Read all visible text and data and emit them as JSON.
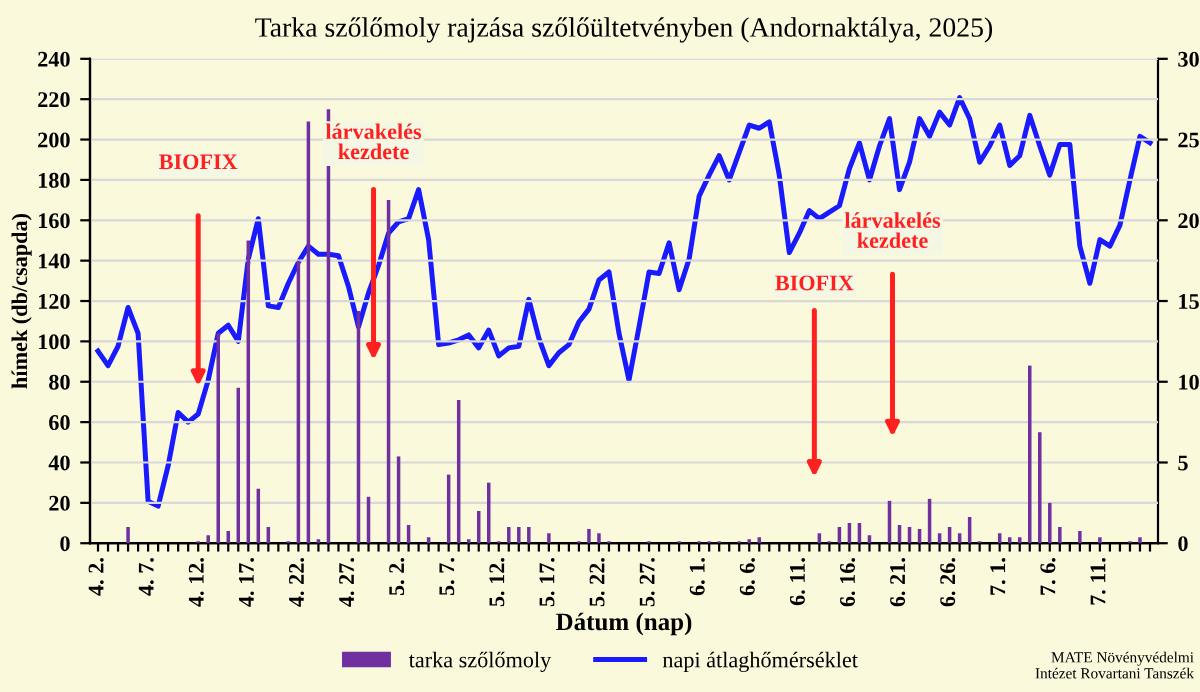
{
  "chart_data": {
    "type": "bar",
    "title": "Tarka szőlőmoly rajzása szőlőültetvényben (Andornaktálya, 2025)",
    "xlabel": "Dátum (nap)",
    "ylabel": "hímek (db/csapda)",
    "categories": [
      "4. 2.",
      null,
      null,
      null,
      null,
      "4. 7.",
      null,
      null,
      null,
      null,
      "4. 12.",
      null,
      null,
      null,
      null,
      "4. 17.",
      null,
      null,
      null,
      null,
      "4. 22.",
      null,
      null,
      null,
      null,
      "4. 27.",
      null,
      null,
      null,
      null,
      "5. 2.",
      null,
      null,
      null,
      null,
      "5. 7.",
      null,
      null,
      null,
      null,
      "5. 12.",
      null,
      null,
      null,
      null,
      "5. 17.",
      null,
      null,
      null,
      null,
      "5. 22.",
      null,
      null,
      null,
      null,
      "5. 27.",
      null,
      null,
      null,
      null,
      "6. 1.",
      null,
      null,
      null,
      null,
      "6. 6.",
      null,
      null,
      null,
      null,
      "6. 11.",
      null,
      null,
      null,
      null,
      "6. 16.",
      null,
      null,
      null,
      null,
      "6. 21.",
      null,
      null,
      null,
      null,
      "6. 26.",
      null,
      null,
      null,
      null,
      "7. 1.",
      null,
      null,
      null,
      null,
      "7. 6.",
      null,
      null,
      null,
      null,
      "7. 11.",
      null,
      null,
      null,
      null,
      null
    ],
    "series": [
      {
        "name": "tarka szőlőmoly",
        "color": "#7030a0",
        "values": [
          0,
          0,
          0,
          8,
          0,
          0,
          0,
          0,
          0,
          0,
          1,
          4,
          104,
          6,
          77,
          150,
          27,
          8,
          0,
          1,
          140,
          209,
          2,
          215,
          0,
          0,
          115,
          23,
          0,
          170,
          43,
          9,
          0,
          3,
          0,
          34,
          71,
          2,
          16,
          30,
          1,
          8,
          8,
          8,
          0,
          5,
          0,
          0,
          1,
          7,
          5,
          1,
          0,
          0,
          0,
          1,
          0,
          0,
          1,
          0,
          1,
          1,
          1,
          0,
          1,
          2,
          3,
          0,
          0,
          0,
          0,
          0,
          5,
          1,
          8,
          10,
          10,
          4,
          0,
          21,
          9,
          8,
          7,
          22,
          5,
          8,
          5,
          13,
          1,
          0,
          5,
          3,
          3,
          88,
          55,
          20,
          8,
          0,
          6,
          0,
          3,
          0,
          0,
          1,
          3,
          0
        ]
      },
      {
        "name": "napi átlaghőmérséklet",
        "type": "line",
        "axis": "y2",
        "color": "#1a1aff",
        "values": [
          11.9,
          11.0,
          12.2,
          14.6,
          13.0,
          2.6,
          2.3,
          4.8,
          8.1,
          7.5,
          8.0,
          10.1,
          13.0,
          13.5,
          12.5,
          17.6,
          20.1,
          14.7,
          14.6,
          16.1,
          17.4,
          18.4,
          17.9,
          17.9,
          17.8,
          15.9,
          13.4,
          15.5,
          17.2,
          19.2,
          19.9,
          20.1,
          21.9,
          18.8,
          12.3,
          12.4,
          12.6,
          12.9,
          12.1,
          13.2,
          11.6,
          12.1,
          12.2,
          15.1,
          12.7,
          11.0,
          11.8,
          12.3,
          13.7,
          14.5,
          16.3,
          16.8,
          13.0,
          10.1,
          13.4,
          16.8,
          16.7,
          18.6,
          15.7,
          17.6,
          21.5,
          22.8,
          24.0,
          22.5,
          24.2,
          25.9,
          25.7,
          26.1,
          22.8,
          18.0,
          19.2,
          20.6,
          20.1,
          20.5,
          20.9,
          23.2,
          24.8,
          22.5,
          24.6,
          26.3,
          21.9,
          23.6,
          26.3,
          25.2,
          26.7,
          25.9,
          27.6,
          26.3,
          23.6,
          24.6,
          25.9,
          23.4,
          24.0,
          26.5,
          24.6,
          22.8,
          24.7,
          24.7,
          18.4,
          16.1,
          18.8,
          18.4,
          19.7,
          22.5,
          25.2,
          24.8
        ]
      }
    ],
    "ylim": [
      0,
      240
    ],
    "yticks": [
      0,
      20,
      40,
      60,
      80,
      100,
      120,
      140,
      160,
      180,
      200,
      220,
      240
    ],
    "y2lim": [
      0,
      30
    ],
    "y2ticks": [
      0,
      5,
      10,
      15,
      20,
      25,
      30
    ],
    "grid": "y",
    "legend": "bottom",
    "marker": "none",
    "line_style": "solid",
    "annotations": [
      "BIOFIX",
      "lárvakelés\nkezdete",
      "BIOFIX",
      "lárvakelés\nkezdete",
      "MATE Növényvédelmi\nIntézet Rovartani Tanszék"
    ]
  }
}
